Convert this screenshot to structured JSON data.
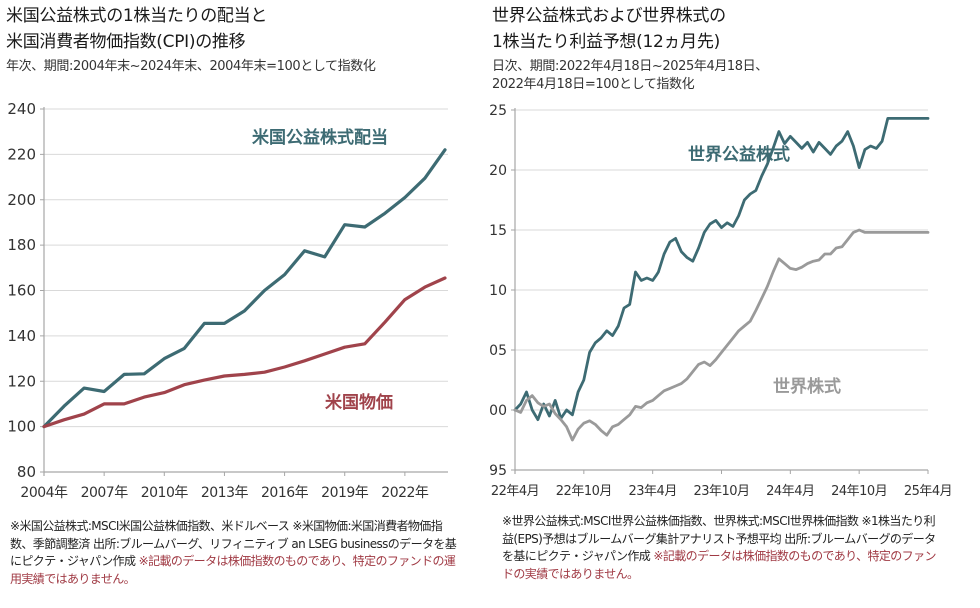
{
  "left": {
    "title_line1": "米国公益株式の1株当たりの配当と",
    "title_line2": "米国消費者物価指数(CPI)の推移",
    "subtitle": "年次、期間:2004年末~2024年末、2004年末=100として指数化",
    "notes_black": "※米国公益株式:MSCI米国公益株価指数、米ドルベース ※米国物価:米国消費者物価指数、季節調整済 出所:ブルームバーグ、リフィニティブ an LSEG businessのデータを基にピクテ・ジャパン作成 ",
    "notes_red": "※記載のデータは株価指数のものであり、特定のファンドの運用実績ではありません。"
  },
  "right": {
    "title_line1": "世界公益株式および世界株式の",
    "title_line2": "1株当たり利益予想(12ヵ月先)",
    "subtitle_line1": "日次、期間:2022年4月18日~2025年4月18日、",
    "subtitle_line2": "2022年4月18日=100として指数化",
    "notes_black": "※世界公益株式:MSCI世界公益株価指数、世界株式:MSCI世界株価指数 ※1株当たり利益(EPS)予想はブルームバーグ集計アナリスト予想平均 出所:ブルームバーグのデータを基にピクテ・ジャパン作成 ",
    "notes_red": "※記載のデータは株価指数のものであり、特定のファンドの実績ではありません。"
  },
  "colors": {
    "utilities": "#3d6b73",
    "cpi": "#a0434b",
    "world": "#9a9a9a",
    "grid": "#d9d9d9",
    "axis": "#a6a6a6"
  },
  "chart_data": [
    {
      "type": "line",
      "title": "米国公益株式の1株当たりの配当と米国消費者物価指数(CPI)の推移",
      "xlabel": "",
      "ylabel": "",
      "ylim": [
        80,
        240
      ],
      "yticks": [
        80,
        100,
        120,
        140,
        160,
        180,
        200,
        220,
        240
      ],
      "x": [
        2004,
        2005,
        2006,
        2007,
        2008,
        2009,
        2010,
        2011,
        2012,
        2013,
        2014,
        2015,
        2016,
        2017,
        2018,
        2019,
        2020,
        2021,
        2022,
        2023,
        2024
      ],
      "xlim": [
        2004,
        2024.6
      ],
      "xticks": [
        2004,
        2007,
        2010,
        2013,
        2016,
        2019,
        2022
      ],
      "xtick_labels": [
        "2004年",
        "2007年",
        "2010年",
        "2013年",
        "2016年",
        "2019年",
        "2022年"
      ],
      "grid": true,
      "legend": "inline labels",
      "series": [
        {
          "name": "米国公益株式配当",
          "color_key": "utilities",
          "values": [
            100,
            109,
            117,
            115.5,
            123,
            123.3,
            130,
            134.5,
            145.5,
            145.5,
            151,
            160,
            167,
            177.5,
            174.8,
            189,
            188,
            194,
            201,
            209.5,
            222
          ]
        },
        {
          "name": "米国物価",
          "color_key": "cpi",
          "values": [
            100,
            103,
            105.5,
            110,
            110,
            113,
            115,
            118.5,
            120.5,
            122.3,
            123,
            124,
            126.3,
            129,
            132,
            135,
            136.5,
            146,
            156,
            161.5,
            165.5
          ]
        }
      ]
    },
    {
      "type": "line",
      "title": "世界公益株式および世界株式の1株当たり利益予想(12ヵ月先)",
      "xlabel": "",
      "ylabel": "",
      "ylim": [
        95,
        125
      ],
      "yticks": [
        95,
        100,
        105,
        110,
        115,
        120,
        125
      ],
      "x_unit": "months since 2022-04",
      "xlim": [
        0,
        36
      ],
      "xticks": [
        0,
        6,
        12,
        18,
        24,
        30,
        36
      ],
      "xtick_labels": [
        "22年4月",
        "22年10月",
        "23年4月",
        "23年10月",
        "24年4月",
        "24年10月",
        "25年4月"
      ],
      "grid": true,
      "legend": "inline labels",
      "series": [
        {
          "name": "世界公益株式",
          "color_key": "utilities",
          "x": [
            0,
            0.5,
            1,
            1.5,
            2,
            2.5,
            3,
            3.5,
            4,
            4.5,
            5,
            5.5,
            6,
            6.5,
            7,
            7.5,
            8,
            8.5,
            9,
            9.5,
            10,
            10.5,
            11,
            11.5,
            12,
            12.3,
            12.5,
            13,
            13.5,
            14,
            14.5,
            15,
            15.5,
            16,
            16.5,
            17,
            17.5,
            18,
            18.5,
            19,
            19.5,
            20,
            20.5,
            21,
            21.5,
            22,
            22.5,
            23,
            23.5,
            24,
            24.5,
            25,
            25.5,
            26,
            26.5,
            27,
            27.5,
            28,
            28.5,
            29,
            29.5,
            30,
            30.5,
            31,
            31.5,
            32,
            32.5,
            33,
            33.3,
            33.5,
            34,
            34.5,
            35,
            35.5,
            36
          ],
          "values": [
            100,
            100.5,
            101.5,
            100,
            99.2,
            100.5,
            99.5,
            100.8,
            99.3,
            100,
            99.6,
            101.5,
            102.5,
            104.8,
            105.6,
            106,
            106.6,
            106.2,
            107,
            108.5,
            108.8,
            111.5,
            110.8,
            111,
            110.8,
            111.2,
            111.5,
            113,
            114,
            114.3,
            113.2,
            112.7,
            112.4,
            113.5,
            114.8,
            115.5,
            115.8,
            115.2,
            115.6,
            115.3,
            116.2,
            117.5,
            118,
            118.3,
            119.5,
            120.5,
            121.8,
            123.2,
            122.2,
            122.8,
            122.3,
            121.8,
            122.3,
            121.5,
            122.3,
            121.8,
            121.3,
            122,
            122.4,
            123.2,
            122,
            120.2,
            121.7,
            122,
            121.8,
            122.4,
            124.3,
            124.3,
            124.3,
            124.3,
            124.3,
            124.3,
            124.3,
            124.3,
            124.3
          ]
        },
        {
          "name": "世界株式",
          "color_key": "world",
          "x": [
            0,
            0.5,
            1,
            1.5,
            2,
            2.5,
            3,
            3.5,
            4,
            4.5,
            5,
            5.5,
            6,
            6.5,
            7,
            7.5,
            8,
            8.5,
            9,
            9.5,
            10,
            10.5,
            11,
            11.5,
            12,
            12.5,
            13,
            13.5,
            14,
            14.5,
            15,
            15.5,
            16,
            16.5,
            17,
            17.5,
            18,
            18.5,
            19,
            19.5,
            20,
            20.5,
            21,
            21.5,
            22,
            22.5,
            23,
            23.5,
            24,
            24.5,
            25,
            25.5,
            26,
            26.5,
            27,
            27.5,
            28,
            28.5,
            29,
            29.5,
            30,
            30.5,
            31,
            31.5,
            32,
            32.5,
            33,
            33.5,
            34,
            34.5,
            35,
            35.5,
            36
          ],
          "values": [
            100,
            99.8,
            100.8,
            101.2,
            100.6,
            100.3,
            100.5,
            99.7,
            99.2,
            98.6,
            97.5,
            98.4,
            98.9,
            99.1,
            98.8,
            98.3,
            97.9,
            98.6,
            98.8,
            99.2,
            99.6,
            100.3,
            100.2,
            100.6,
            100.8,
            101.2,
            101.6,
            101.8,
            102,
            102.2,
            102.6,
            103.2,
            103.8,
            104,
            103.7,
            104.2,
            104.8,
            105.4,
            106,
            106.6,
            107,
            107.4,
            108.3,
            109.3,
            110.3,
            111.5,
            112.6,
            112.2,
            111.8,
            111.7,
            111.9,
            112.2,
            112.4,
            112.5,
            113,
            113,
            113.5,
            113.6,
            114.2,
            114.8,
            115,
            114.8,
            114.8,
            114.8,
            114.8,
            114.8,
            114.8,
            114.8,
            114.8,
            114.8,
            114.8,
            114.8,
            114.8
          ]
        }
      ]
    }
  ]
}
